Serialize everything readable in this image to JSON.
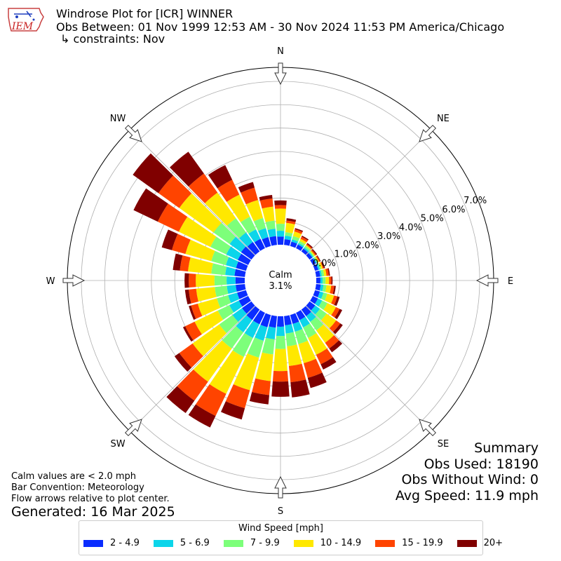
{
  "header": {
    "title": "Windrose Plot for [ICR] WINNER",
    "obs_between": "Obs Between: 01 Nov 1999 12:53 AM - 30 Nov 2024 11:53 PM America/Chicago",
    "constraints": "↳ constraints: Nov",
    "logo_text": "IEM"
  },
  "notes": {
    "calm": "Calm values are < 2.0 mph",
    "bar_convention": "Bar Convention: Meteorology",
    "flow": "Flow arrows relative to plot center.",
    "generated": "Generated: 16 Mar 2025"
  },
  "summary": {
    "title": "Summary",
    "obs_used": "Obs Used: 18190",
    "obs_without_wind": "Obs Without Wind: 0",
    "avg_speed": "Avg Speed: 11.9 mph"
  },
  "legend": {
    "title": "Wind Speed [mph]",
    "items": [
      {
        "label": "2 - 4.9",
        "color": "#0a2cff"
      },
      {
        "label": "5 - 6.9",
        "color": "#0cd5ea"
      },
      {
        "label": "7 - 9.9",
        "color": "#7dff7a"
      },
      {
        "label": "10 - 14.9",
        "color": "#ffe800"
      },
      {
        "label": "15 - 19.9",
        "color": "#ff4400"
      },
      {
        "label": "20+",
        "color": "#800000"
      }
    ]
  },
  "chart_data": {
    "type": "windrose",
    "calm_label": "Calm",
    "calm_value": "3.1%",
    "calm_percent": 3.1,
    "radial_axis": {
      "ticks": [
        0.0,
        1.0,
        2.0,
        3.0,
        4.0,
        5.0,
        6.0,
        7.0
      ],
      "tick_labels": [
        "0.0%",
        "1.0%",
        "2.0%",
        "3.0%",
        "4.0%",
        "5.0%",
        "6.0%",
        "7.0%"
      ],
      "max": 7.6
    },
    "direction_labels": [
      "N",
      "NE",
      "E",
      "SE",
      "S",
      "SW",
      "W",
      "NW"
    ],
    "sector_width_deg": 10,
    "speed_bins": [
      "2 - 4.9",
      "5 - 6.9",
      "7 - 9.9",
      "10 - 14.9",
      "15 - 19.9",
      "20+"
    ],
    "colors": [
      "#0a2cff",
      "#0cd5ea",
      "#7dff7a",
      "#ffe800",
      "#ff4400",
      "#800000"
    ],
    "directions_deg": [
      0,
      10,
      20,
      30,
      40,
      50,
      60,
      70,
      80,
      90,
      100,
      110,
      120,
      130,
      140,
      150,
      160,
      170,
      180,
      190,
      200,
      210,
      220,
      230,
      240,
      250,
      260,
      270,
      280,
      290,
      300,
      310,
      320,
      330,
      340,
      350
    ],
    "cumulative_percent": [
      [
        0.35,
        0.6,
        0.9,
        1.55,
        1.7,
        1.9
      ],
      [
        0.25,
        0.4,
        0.55,
        0.95,
        1.05,
        1.15
      ],
      [
        0.2,
        0.3,
        0.45,
        0.65,
        0.75,
        0.8
      ],
      [
        0.18,
        0.25,
        0.35,
        0.45,
        0.55,
        0.6
      ],
      [
        0.15,
        0.22,
        0.3,
        0.35,
        0.4,
        0.45
      ],
      [
        0.15,
        0.2,
        0.25,
        0.3,
        0.35,
        0.4
      ],
      [
        0.15,
        0.2,
        0.25,
        0.3,
        0.35,
        0.38
      ],
      [
        0.15,
        0.22,
        0.28,
        0.35,
        0.4,
        0.45
      ],
      [
        0.18,
        0.25,
        0.35,
        0.45,
        0.55,
        0.6
      ],
      [
        0.18,
        0.28,
        0.4,
        0.55,
        0.65,
        0.7
      ],
      [
        0.2,
        0.32,
        0.45,
        0.65,
        0.78,
        0.85
      ],
      [
        0.22,
        0.38,
        0.55,
        0.85,
        1.0,
        1.1
      ],
      [
        0.25,
        0.45,
        0.7,
        1.1,
        1.28,
        1.4
      ],
      [
        0.3,
        0.55,
        0.9,
        1.4,
        1.62,
        1.75
      ],
      [
        0.35,
        0.65,
        1.1,
        1.75,
        2.05,
        2.25
      ],
      [
        0.35,
        0.7,
        1.2,
        2.0,
        2.45,
        2.7
      ],
      [
        0.4,
        0.75,
        1.3,
        2.15,
        2.8,
        3.25
      ],
      [
        0.4,
        0.75,
        1.3,
        2.15,
        2.85,
        3.5
      ],
      [
        0.45,
        0.85,
        1.4,
        2.35,
        2.8,
        3.45
      ],
      [
        0.5,
        1.0,
        1.65,
        2.8,
        3.4,
        3.8
      ],
      [
        0.55,
        1.15,
        1.9,
        3.35,
        4.15,
        4.65
      ],
      [
        0.55,
        1.2,
        2.1,
        3.85,
        4.9,
        5.45
      ],
      [
        0.55,
        1.2,
        2.05,
        3.8,
        4.8,
        5.45
      ],
      [
        0.5,
        1.0,
        1.7,
        3.1,
        3.8,
        4.05
      ],
      [
        0.45,
        0.9,
        1.45,
        2.55,
        3.0,
        3.1
      ],
      [
        0.4,
        0.8,
        1.3,
        2.15,
        2.45,
        2.55
      ],
      [
        0.4,
        0.78,
        1.3,
        2.1,
        2.42,
        2.58
      ],
      [
        0.4,
        0.78,
        1.3,
        2.1,
        2.4,
        2.58
      ],
      [
        0.45,
        0.85,
        1.45,
        2.45,
        2.8,
        3.1
      ],
      [
        0.45,
        0.9,
        1.55,
        2.7,
        3.3,
        3.75
      ],
      [
        0.5,
        1.05,
        1.8,
        3.3,
        4.3,
        5.45
      ],
      [
        0.55,
        1.15,
        2.0,
        3.8,
        4.9,
        6.25
      ],
      [
        0.5,
        1.0,
        1.75,
        3.1,
        4.1,
        5.25
      ],
      [
        0.45,
        0.9,
        1.5,
        2.55,
        3.25,
        3.95
      ],
      [
        0.4,
        0.8,
        1.25,
        2.05,
        2.6,
        2.85
      ],
      [
        0.38,
        0.7,
        1.05,
        1.65,
        2.0,
        2.15
      ]
    ]
  }
}
